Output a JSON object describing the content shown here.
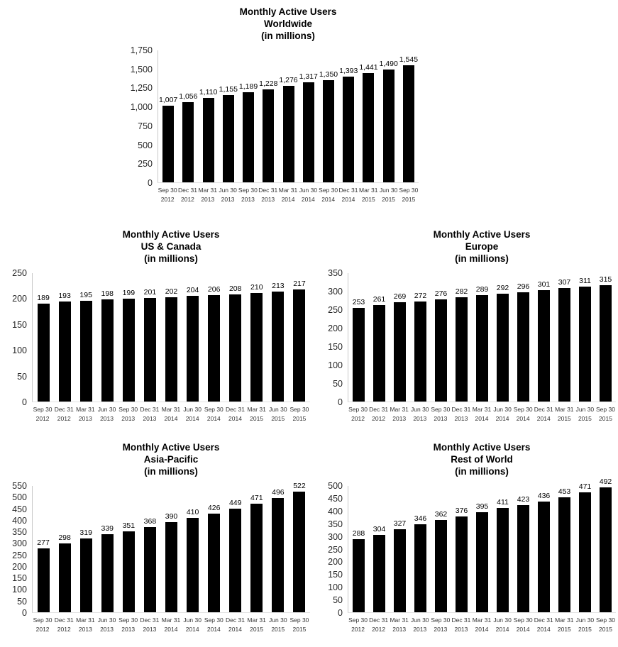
{
  "page": {
    "background": "#ffffff",
    "bar_color": "#000000",
    "axis_line_color": "#c9c9c9",
    "baseline_color": "#e2e2e2",
    "title_color": "#000000",
    "tick_color": "#262626"
  },
  "chart_data": [
    {
      "id": "worldwide",
      "type": "bar",
      "title": "Monthly Active Users Worldwide (in millions)",
      "title_lines": [
        "Monthly Active Users",
        "Worldwide",
        "(in millions)"
      ],
      "categories": [
        "Sep 30 2012",
        "Dec 31 2012",
        "Mar 31 2013",
        "Jun 30 2013",
        "Sep 30 2013",
        "Dec 31 2013",
        "Mar 31 2014",
        "Jun 30 2014",
        "Sep 30 2014",
        "Dec 31 2014",
        "Mar 31 2015",
        "Jun 30 2015",
        "Sep 30 2015"
      ],
      "values": [
        1007,
        1056,
        1110,
        1155,
        1189,
        1228,
        1276,
        1317,
        1350,
        1393,
        1441,
        1490,
        1545
      ],
      "value_labels": [
        "1,007",
        "1,056",
        "1,110",
        "1,155",
        "1,189",
        "1,228",
        "1,276",
        "1,317",
        "1,350",
        "1,393",
        "1,441",
        "1,490",
        "1,545"
      ],
      "ylim": [
        0,
        1750
      ],
      "ytick_step": 250,
      "yticks_top_to_bottom": [
        "1,750",
        "1,500",
        "1,250",
        "1,000",
        "750",
        "500",
        "250",
        "0"
      ],
      "grid": false,
      "legend": false
    },
    {
      "id": "us_canada",
      "type": "bar",
      "title": "Monthly Active Users US & Canada (in millions)",
      "title_lines": [
        "Monthly Active Users",
        "US & Canada",
        "(in millions)"
      ],
      "categories": [
        "Sep 30 2012",
        "Dec 31 2012",
        "Mar 31 2013",
        "Jun 30 2013",
        "Sep 30 2013",
        "Dec 31 2013",
        "Mar 31 2014",
        "Jun 30 2014",
        "Sep 30 2014",
        "Dec 31 2014",
        "Mar 31 2015",
        "Jun 30 2015",
        "Sep 30 2015"
      ],
      "values": [
        189,
        193,
        195,
        198,
        199,
        201,
        202,
        204,
        206,
        208,
        210,
        213,
        217
      ],
      "value_labels": [
        "189",
        "193",
        "195",
        "198",
        "199",
        "201",
        "202",
        "204",
        "206",
        "208",
        "210",
        "213",
        "217"
      ],
      "ylim": [
        0,
        250
      ],
      "ytick_step": 50,
      "yticks_top_to_bottom": [
        "250",
        "200",
        "150",
        "100",
        "50",
        "0"
      ],
      "grid": false,
      "legend": false
    },
    {
      "id": "europe",
      "type": "bar",
      "title": "Monthly Active Users Europe (in millions)",
      "title_lines": [
        "Monthly Active Users",
        "Europe",
        "(in millions)"
      ],
      "categories": [
        "Sep 30 2012",
        "Dec 31 2012",
        "Mar 31 2013",
        "Jun 30 2013",
        "Sep 30 2013",
        "Dec 31 2013",
        "Mar 31 2014",
        "Jun 30 2014",
        "Sep 30 2014",
        "Dec 31 2014",
        "Mar 31 2015",
        "Jun 30 2015",
        "Sep 30 2015"
      ],
      "values": [
        253,
        261,
        269,
        272,
        276,
        282,
        289,
        292,
        296,
        301,
        307,
        311,
        315
      ],
      "value_labels": [
        "253",
        "261",
        "269",
        "272",
        "276",
        "282",
        "289",
        "292",
        "296",
        "301",
        "307",
        "311",
        "315"
      ],
      "ylim": [
        0,
        350
      ],
      "ytick_step": 50,
      "yticks_top_to_bottom": [
        "350",
        "300",
        "250",
        "200",
        "150",
        "100",
        "50",
        "0"
      ],
      "grid": false,
      "legend": false
    },
    {
      "id": "asia_pacific",
      "type": "bar",
      "title": "Monthly Active Users Asia-Pacific (in millions)",
      "title_lines": [
        "Monthly Active Users",
        "Asia-Pacific",
        "(in millions)"
      ],
      "categories": [
        "Sep 30 2012",
        "Dec 31 2012",
        "Mar 31 2013",
        "Jun 30 2013",
        "Sep 30 2013",
        "Dec 31 2013",
        "Mar 31 2014",
        "Jun 30 2014",
        "Sep 30 2014",
        "Dec 31 2014",
        "Mar 31 2015",
        "Jun 30 2015",
        "Sep 30 2015"
      ],
      "values": [
        277,
        298,
        319,
        339,
        351,
        368,
        390,
        410,
        426,
        449,
        471,
        496,
        522
      ],
      "value_labels": [
        "277",
        "298",
        "319",
        "339",
        "351",
        "368",
        "390",
        "410",
        "426",
        "449",
        "471",
        "496",
        "522"
      ],
      "ylim": [
        0,
        550
      ],
      "ytick_step": 50,
      "yticks_top_to_bottom": [
        "550",
        "500",
        "450",
        "400",
        "350",
        "300",
        "250",
        "200",
        "150",
        "100",
        "50",
        "0"
      ],
      "grid": false,
      "legend": false
    },
    {
      "id": "rest_of_world",
      "type": "bar",
      "title": "Monthly Active Users Rest of World (in millions)",
      "title_lines": [
        "Monthly Active Users",
        "Rest of World",
        "(in millions)"
      ],
      "categories": [
        "Sep 30 2012",
        "Dec 31 2012",
        "Mar 31 2013",
        "Jun 30 2013",
        "Sep 30 2013",
        "Dec 31 2013",
        "Mar 31 2014",
        "Jun 30 2014",
        "Sep 30 2014",
        "Dec 31 2014",
        "Mar 31 2015",
        "Jun 30 2015",
        "Sep 30 2015"
      ],
      "values": [
        288,
        304,
        327,
        346,
        362,
        376,
        395,
        411,
        423,
        436,
        453,
        471,
        492
      ],
      "value_labels": [
        "288",
        "304",
        "327",
        "346",
        "362",
        "376",
        "395",
        "411",
        "423",
        "436",
        "453",
        "471",
        "492"
      ],
      "ylim": [
        0,
        500
      ],
      "ytick_step": 50,
      "yticks_top_to_bottom": [
        "500",
        "450",
        "400",
        "350",
        "300",
        "250",
        "200",
        "150",
        "100",
        "50",
        "0"
      ],
      "grid": false,
      "legend": false
    }
  ]
}
